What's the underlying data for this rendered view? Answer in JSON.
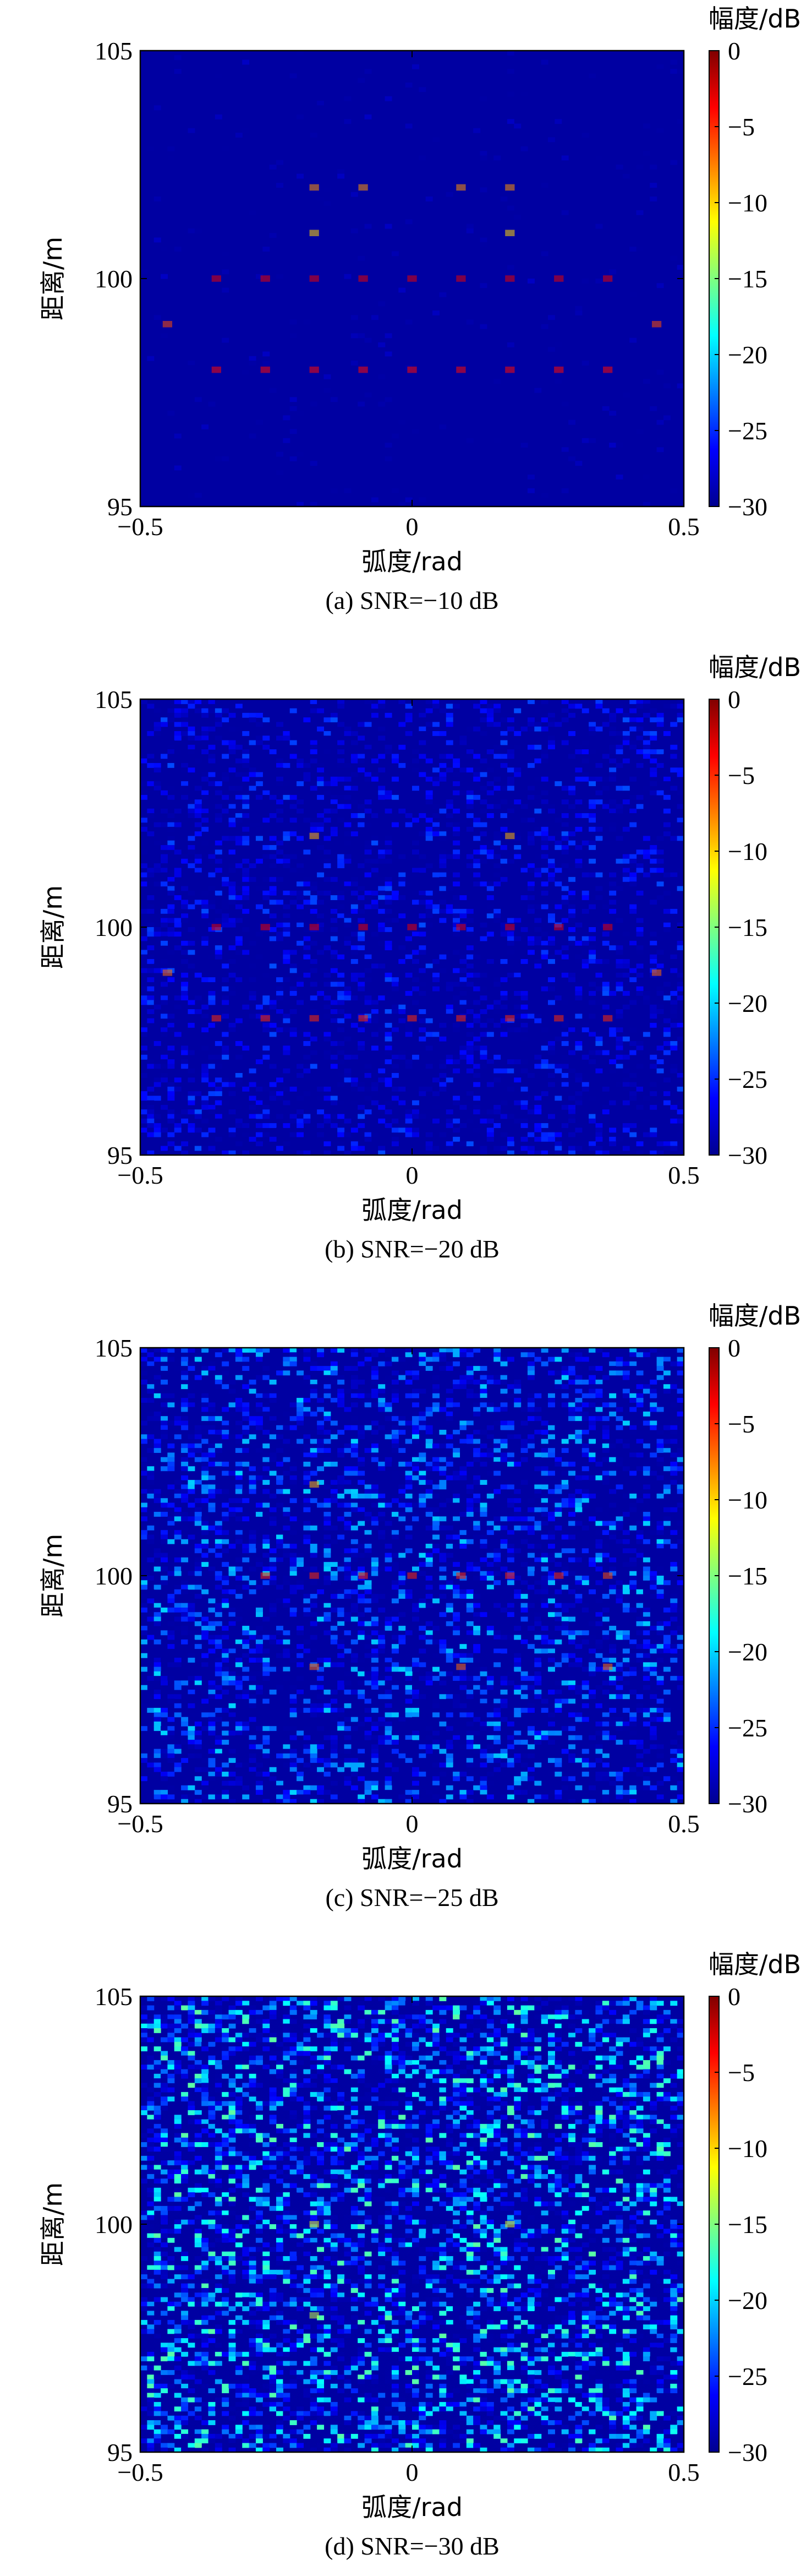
{
  "chart_data": [
    {
      "type": "heatmap",
      "caption": "(a) SNR=−10 dB",
      "xlabel": "弧度/rad",
      "ylabel": "距离/m",
      "colorbar_label": "幅度/dB",
      "xlim": [
        -0.5,
        0.5
      ],
      "ylim": [
        95,
        105
      ],
      "clim": [
        -30,
        0
      ],
      "x_ticks": [
        -0.5,
        0,
        0.5
      ],
      "x_tick_labels": [
        "−0.5",
        "0",
        "0.5"
      ],
      "y_ticks": [
        95,
        100,
        105
      ],
      "y_tick_labels": [
        "95",
        "100",
        "105"
      ],
      "colorbar_ticks": [
        0,
        -5,
        -10,
        -15,
        -20,
        -25,
        -30
      ],
      "colorbar_tick_labels": [
        "0",
        "−5",
        "−10",
        "−15",
        "−20",
        "−25",
        "−30"
      ],
      "colormap": "jet",
      "background_db": -29,
      "snr_db": -10,
      "noise_max_db": -28,
      "noise_density": 0.04,
      "seed": 11,
      "peaks": [
        {
          "x": -0.36,
          "y": 100,
          "db": -3
        },
        {
          "x": -0.27,
          "y": 100,
          "db": -3
        },
        {
          "x": -0.18,
          "y": 100,
          "db": -3
        },
        {
          "x": -0.09,
          "y": 100,
          "db": -3
        },
        {
          "x": 0.0,
          "y": 100,
          "db": -3
        },
        {
          "x": 0.09,
          "y": 100,
          "db": -3
        },
        {
          "x": 0.18,
          "y": 100,
          "db": -3
        },
        {
          "x": 0.27,
          "y": 100,
          "db": -3
        },
        {
          "x": 0.36,
          "y": 100,
          "db": -3
        },
        {
          "x": -0.36,
          "y": 98,
          "db": -4
        },
        {
          "x": -0.27,
          "y": 98,
          "db": -4
        },
        {
          "x": -0.18,
          "y": 98,
          "db": -4
        },
        {
          "x": -0.09,
          "y": 98,
          "db": -4
        },
        {
          "x": 0.0,
          "y": 98,
          "db": -4
        },
        {
          "x": 0.09,
          "y": 98,
          "db": -4
        },
        {
          "x": 0.18,
          "y": 98,
          "db": -4
        },
        {
          "x": 0.27,
          "y": 98,
          "db": -4
        },
        {
          "x": 0.36,
          "y": 98,
          "db": -4
        },
        {
          "x": -0.18,
          "y": 102,
          "db": -8
        },
        {
          "x": -0.09,
          "y": 102,
          "db": -8
        },
        {
          "x": 0.09,
          "y": 102,
          "db": -8
        },
        {
          "x": 0.18,
          "y": 102,
          "db": -8
        },
        {
          "x": -0.18,
          "y": 101,
          "db": -10
        },
        {
          "x": 0.18,
          "y": 101,
          "db": -10
        },
        {
          "x": -0.45,
          "y": 99,
          "db": -6
        },
        {
          "x": 0.45,
          "y": 99,
          "db": -6
        }
      ]
    },
    {
      "type": "heatmap",
      "caption": "(b) SNR=−20 dB",
      "xlabel": "弧度/rad",
      "ylabel": "距离/m",
      "colorbar_label": "幅度/dB",
      "xlim": [
        -0.5,
        0.5
      ],
      "ylim": [
        95,
        105
      ],
      "clim": [
        -30,
        0
      ],
      "x_ticks": [
        -0.5,
        0,
        0.5
      ],
      "x_tick_labels": [
        "−0.5",
        "0",
        "0.5"
      ],
      "y_ticks": [
        95,
        100,
        105
      ],
      "y_tick_labels": [
        "95",
        "100",
        "105"
      ],
      "colorbar_ticks": [
        0,
        -5,
        -10,
        -15,
        -20,
        -25,
        -30
      ],
      "colorbar_tick_labels": [
        "0",
        "−5",
        "−10",
        "−15",
        "−20",
        "−25",
        "−30"
      ],
      "colormap": "jet",
      "background_db": -29,
      "snr_db": -20,
      "noise_max_db": -24,
      "noise_density": 0.32,
      "seed": 23,
      "peaks": [
        {
          "x": -0.36,
          "y": 100,
          "db": -3
        },
        {
          "x": -0.27,
          "y": 100,
          "db": -3
        },
        {
          "x": -0.18,
          "y": 100,
          "db": -3
        },
        {
          "x": -0.09,
          "y": 100,
          "db": -3
        },
        {
          "x": 0.0,
          "y": 100,
          "db": -3
        },
        {
          "x": 0.09,
          "y": 100,
          "db": -3
        },
        {
          "x": 0.18,
          "y": 100,
          "db": -3
        },
        {
          "x": 0.27,
          "y": 100,
          "db": -3
        },
        {
          "x": 0.36,
          "y": 100,
          "db": -3
        },
        {
          "x": -0.36,
          "y": 98,
          "db": -5
        },
        {
          "x": -0.27,
          "y": 98,
          "db": -5
        },
        {
          "x": -0.18,
          "y": 98,
          "db": -5
        },
        {
          "x": -0.09,
          "y": 98,
          "db": -5
        },
        {
          "x": 0.0,
          "y": 98,
          "db": -5
        },
        {
          "x": 0.09,
          "y": 98,
          "db": -5
        },
        {
          "x": 0.18,
          "y": 98,
          "db": -5
        },
        {
          "x": 0.27,
          "y": 98,
          "db": -5
        },
        {
          "x": 0.36,
          "y": 98,
          "db": -5
        },
        {
          "x": -0.18,
          "y": 102,
          "db": -9
        },
        {
          "x": 0.18,
          "y": 102,
          "db": -9
        },
        {
          "x": -0.45,
          "y": 99,
          "db": -7
        },
        {
          "x": 0.45,
          "y": 99,
          "db": -7
        }
      ]
    },
    {
      "type": "heatmap",
      "caption": "(c) SNR=−25 dB",
      "xlabel": "弧度/rad",
      "ylabel": "距离/m",
      "colorbar_label": "幅度/dB",
      "xlim": [
        -0.5,
        0.5
      ],
      "ylim": [
        95,
        105
      ],
      "clim": [
        -30,
        0
      ],
      "x_ticks": [
        -0.5,
        0,
        0.5
      ],
      "x_tick_labels": [
        "−0.5",
        "0",
        "0.5"
      ],
      "y_ticks": [
        95,
        100,
        105
      ],
      "y_tick_labels": [
        "95",
        "100",
        "105"
      ],
      "colorbar_ticks": [
        0,
        -5,
        -10,
        -15,
        -20,
        -25,
        -30
      ],
      "colorbar_tick_labels": [
        "0",
        "−5",
        "−10",
        "−15",
        "−20",
        "−25",
        "−30"
      ],
      "colormap": "jet",
      "background_db": -29,
      "snr_db": -25,
      "noise_max_db": -20,
      "noise_density": 0.42,
      "seed": 37,
      "peaks": [
        {
          "x": -0.27,
          "y": 100,
          "db": -5
        },
        {
          "x": -0.18,
          "y": 100,
          "db": -5
        },
        {
          "x": -0.09,
          "y": 100,
          "db": -5
        },
        {
          "x": 0.0,
          "y": 100,
          "db": -5
        },
        {
          "x": 0.09,
          "y": 100,
          "db": -5
        },
        {
          "x": 0.18,
          "y": 100,
          "db": -5
        },
        {
          "x": 0.27,
          "y": 100,
          "db": -5
        },
        {
          "x": 0.36,
          "y": 100,
          "db": -6
        },
        {
          "x": -0.18,
          "y": 98,
          "db": -7
        },
        {
          "x": 0.09,
          "y": 98,
          "db": -7
        },
        {
          "x": 0.36,
          "y": 98,
          "db": -7
        },
        {
          "x": -0.18,
          "y": 102,
          "db": -9
        }
      ]
    },
    {
      "type": "heatmap",
      "caption": "(d) SNR=−30 dB",
      "xlabel": "弧度/rad",
      "ylabel": "距离/m",
      "colorbar_label": "幅度/dB",
      "xlim": [
        -0.5,
        0.5
      ],
      "ylim": [
        95,
        105
      ],
      "clim": [
        -30,
        0
      ],
      "x_ticks": [
        -0.5,
        0,
        0.5
      ],
      "x_tick_labels": [
        "−0.5",
        "0",
        "0.5"
      ],
      "y_ticks": [
        95,
        100,
        105
      ],
      "y_tick_labels": [
        "95",
        "100",
        "105"
      ],
      "colorbar_ticks": [
        0,
        -5,
        -10,
        -15,
        -20,
        -25,
        -30
      ],
      "colorbar_tick_labels": [
        "0",
        "−5",
        "−10",
        "−15",
        "−20",
        "−25",
        "−30"
      ],
      "colormap": "jet",
      "background_db": -29,
      "snr_db": -30,
      "noise_max_db": -16,
      "noise_density": 0.52,
      "seed": 53,
      "peaks": [
        {
          "x": -0.18,
          "y": 100,
          "db": -12
        },
        {
          "x": 0.18,
          "y": 100,
          "db": -12
        },
        {
          "x": -0.18,
          "y": 98,
          "db": -13
        }
      ]
    }
  ]
}
